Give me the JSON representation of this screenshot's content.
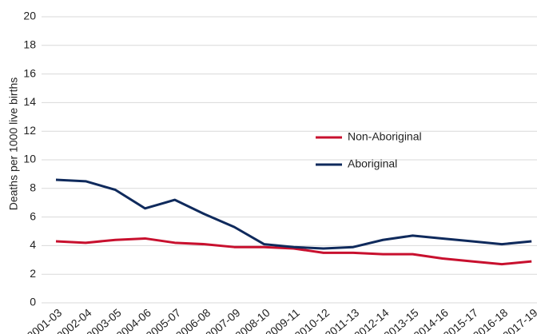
{
  "chart_data": {
    "type": "line",
    "y_label": "Deaths per 1000 live births",
    "categories": [
      "2001-03",
      "2002-04",
      "2003-05",
      "2004-06",
      "2005-07",
      "2006-08",
      "2007-09",
      "2008-10",
      "2009-11",
      "2010-12",
      "2011-13",
      "2012-14",
      "2013-15",
      "2014-16",
      "2015-17",
      "2016-18",
      "2017-19"
    ],
    "series": [
      {
        "name": "Non-Aboriginal",
        "color": "#c8102e",
        "values": [
          4.3,
          4.2,
          4.4,
          4.5,
          4.2,
          4.1,
          3.9,
          3.9,
          3.8,
          3.5,
          3.5,
          3.4,
          3.4,
          3.1,
          2.9,
          2.7,
          2.9
        ]
      },
      {
        "name": "Aboriginal",
        "color": "#0f2a5c",
        "values": [
          8.6,
          8.5,
          7.9,
          6.6,
          7.2,
          6.2,
          5.3,
          4.1,
          3.9,
          3.8,
          3.9,
          4.4,
          4.7,
          4.5,
          4.3,
          4.1,
          4.3
        ]
      }
    ],
    "ylim": [
      0,
      20
    ],
    "yticks": [
      0,
      2,
      4,
      6,
      8,
      10,
      12,
      14,
      16,
      18,
      20
    ],
    "grid": true
  }
}
